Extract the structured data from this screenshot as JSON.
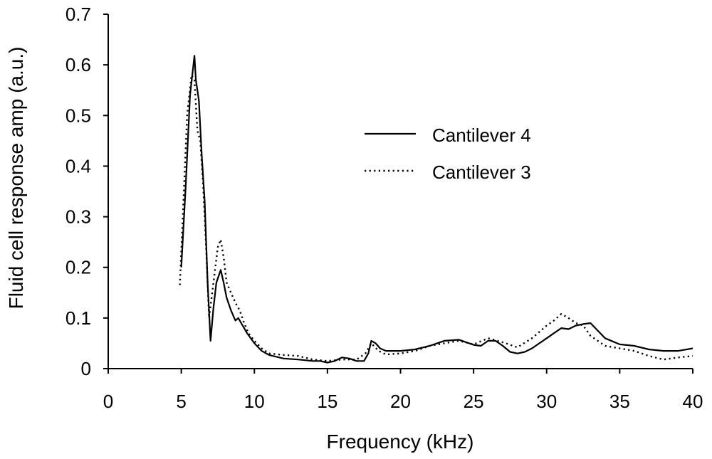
{
  "chart_data": {
    "type": "line",
    "xlabel": "Frequency (kHz)",
    "ylabel": "Fluid cell response amp (a.u.)",
    "xlim": [
      0,
      40
    ],
    "ylim": [
      0,
      0.7
    ],
    "x_ticks": [
      "0",
      "5",
      "10",
      "15",
      "20",
      "25",
      "30",
      "35",
      "40"
    ],
    "y_ticks": [
      "0",
      "0.1",
      "0.2",
      "0.3",
      "0.4",
      "0.5",
      "0.6",
      "0.7"
    ],
    "grid": false,
    "legend_position": "upper-right",
    "series": [
      {
        "name": "Cantilever 4",
        "style": "solid",
        "color": "#000000",
        "x": [
          5.0,
          5.3,
          5.6,
          5.9,
          6.0,
          6.2,
          6.4,
          6.6,
          6.8,
          7.0,
          7.2,
          7.4,
          7.7,
          7.9,
          8.1,
          8.4,
          8.7,
          8.9,
          9.2,
          9.5,
          10.0,
          10.5,
          11.0,
          12.0,
          13.0,
          14.0,
          14.5,
          15.0,
          15.5,
          16.0,
          16.5,
          17.0,
          17.5,
          17.8,
          18.0,
          18.3,
          18.6,
          19.0,
          20.0,
          21.0,
          22.0,
          22.5,
          23.0,
          24.0,
          25.0,
          25.5,
          26.0,
          26.5,
          27.0,
          27.5,
          28.0,
          28.5,
          29.0,
          29.5,
          30.0,
          30.5,
          31.0,
          31.5,
          32.0,
          32.5,
          33.0,
          33.5,
          34.0,
          35.0,
          36.0,
          37.0,
          38.0,
          39.0,
          40.0
        ],
        "y": [
          0.2,
          0.36,
          0.54,
          0.618,
          0.57,
          0.53,
          0.42,
          0.33,
          0.17,
          0.055,
          0.12,
          0.17,
          0.195,
          0.17,
          0.14,
          0.115,
          0.095,
          0.1,
          0.085,
          0.07,
          0.05,
          0.035,
          0.027,
          0.02,
          0.018,
          0.015,
          0.015,
          0.012,
          0.015,
          0.022,
          0.02,
          0.015,
          0.015,
          0.03,
          0.055,
          0.05,
          0.04,
          0.035,
          0.035,
          0.038,
          0.045,
          0.05,
          0.055,
          0.057,
          0.047,
          0.045,
          0.055,
          0.055,
          0.045,
          0.033,
          0.03,
          0.033,
          0.04,
          0.05,
          0.06,
          0.07,
          0.08,
          0.078,
          0.085,
          0.088,
          0.09,
          0.075,
          0.06,
          0.048,
          0.045,
          0.038,
          0.035,
          0.035,
          0.04
        ]
      },
      {
        "name": "Cantilever 3",
        "style": "dotted",
        "color": "#000000",
        "x": [
          4.9,
          5.1,
          5.4,
          5.7,
          5.9,
          6.1,
          6.3,
          6.5,
          6.7,
          6.9,
          7.2,
          7.5,
          7.7,
          7.9,
          8.1,
          8.4,
          8.7,
          9.0,
          9.3,
          9.6,
          10.0,
          10.5,
          11.0,
          12.0,
          13.0,
          14.0,
          15.0,
          16.0,
          17.0,
          17.6,
          18.0,
          18.5,
          19.0,
          20.0,
          21.0,
          22.0,
          23.0,
          24.0,
          25.0,
          26.0,
          27.0,
          28.0,
          29.0,
          30.0,
          30.5,
          31.0,
          31.5,
          32.0,
          32.5,
          33.0,
          34.0,
          35.0,
          36.0,
          37.0,
          38.0,
          39.0,
          40.0
        ],
        "y": [
          0.165,
          0.3,
          0.5,
          0.58,
          0.57,
          0.47,
          0.45,
          0.36,
          0.24,
          0.1,
          0.17,
          0.24,
          0.255,
          0.22,
          0.17,
          0.15,
          0.13,
          0.115,
          0.09,
          0.07,
          0.055,
          0.04,
          0.03,
          0.027,
          0.025,
          0.018,
          0.015,
          0.018,
          0.018,
          0.03,
          0.05,
          0.035,
          0.028,
          0.03,
          0.035,
          0.045,
          0.05,
          0.055,
          0.048,
          0.06,
          0.052,
          0.042,
          0.06,
          0.085,
          0.095,
          0.108,
          0.1,
          0.09,
          0.085,
          0.065,
          0.045,
          0.04,
          0.035,
          0.025,
          0.018,
          0.022,
          0.025
        ]
      }
    ]
  }
}
